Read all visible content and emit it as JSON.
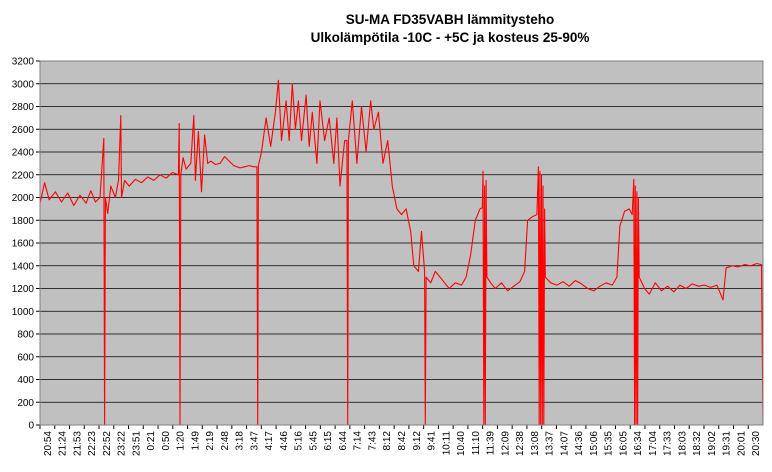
{
  "chart_data": {
    "type": "line",
    "title": "SU-MA FD35VABH lämmitysteho",
    "subtitle": "Ulkolämpötila  -10C - +5C ja kosteus 25-90%",
    "xlabel": "",
    "ylabel": "",
    "ylim": [
      0,
      3200
    ],
    "ytick_step": 200,
    "grid": true,
    "legend": "none",
    "colors": {
      "plot_bg": "#c0c0c0",
      "line": "#ff0000",
      "grid": "#000000"
    },
    "x_ticks": [
      "20:54",
      "21:24",
      "21:53",
      "22:23",
      "22:52",
      "23:22",
      "23:51",
      "0:21",
      "0:50",
      "1:20",
      "1:49",
      "2:19",
      "2:48",
      "3:18",
      "3:47",
      "4:17",
      "4:46",
      "5:16",
      "5:45",
      "6:15",
      "6:44",
      "7:14",
      "7:43",
      "8:12",
      "8:42",
      "9:12",
      "9:41",
      "10:11",
      "10:40",
      "11:10",
      "11:39",
      "12:09",
      "12:38",
      "13:08",
      "13:37",
      "14:07",
      "14:36",
      "15:06",
      "15:35",
      "16:05",
      "16:34",
      "17:04",
      "17:33",
      "18:03",
      "18:32",
      "19:02",
      "19:31",
      "20:01",
      "20:30"
    ],
    "series": [
      {
        "color": "#ff0000",
        "points": [
          [
            0,
            1950
          ],
          [
            0.3,
            2130
          ],
          [
            0.6,
            1980
          ],
          [
            1,
            2050
          ],
          [
            1.4,
            1960
          ],
          [
            1.8,
            2040
          ],
          [
            2.2,
            1930
          ],
          [
            2.6,
            2020
          ],
          [
            3,
            1950
          ],
          [
            3.3,
            2060
          ],
          [
            3.6,
            1960
          ],
          [
            3.9,
            2000
          ],
          [
            4.15,
            2520
          ],
          [
            4.2,
            0
          ],
          [
            4.25,
            2000
          ],
          [
            4.4,
            1860
          ],
          [
            4.6,
            2100
          ],
          [
            4.9,
            2000
          ],
          [
            5.1,
            2150
          ],
          [
            5.25,
            2720
          ],
          [
            5.3,
            2000
          ],
          [
            5.5,
            2150
          ],
          [
            5.8,
            2100
          ],
          [
            6.2,
            2160
          ],
          [
            6.6,
            2130
          ],
          [
            7,
            2180
          ],
          [
            7.4,
            2150
          ],
          [
            7.8,
            2200
          ],
          [
            8.2,
            2170
          ],
          [
            8.6,
            2220
          ],
          [
            9,
            2200
          ],
          [
            9.05,
            2650
          ],
          [
            9.1,
            0
          ],
          [
            9.15,
            2200
          ],
          [
            9.3,
            2350
          ],
          [
            9.5,
            2250
          ],
          [
            9.8,
            2300
          ],
          [
            10,
            2720
          ],
          [
            10.1,
            2150
          ],
          [
            10.3,
            2580
          ],
          [
            10.5,
            2050
          ],
          [
            10.7,
            2550
          ],
          [
            10.9,
            2300
          ],
          [
            11.1,
            2320
          ],
          [
            11.4,
            2290
          ],
          [
            11.7,
            2300
          ],
          [
            12,
            2360
          ],
          [
            12.3,
            2320
          ],
          [
            12.6,
            2280
          ],
          [
            13,
            2260
          ],
          [
            13.3,
            2270
          ],
          [
            13.6,
            2280
          ],
          [
            13.9,
            2270
          ],
          [
            14.1,
            2270
          ],
          [
            14.15,
            0
          ],
          [
            14.2,
            2280
          ],
          [
            14.4,
            2400
          ],
          [
            14.7,
            2700
          ],
          [
            15,
            2450
          ],
          [
            15.3,
            2750
          ],
          [
            15.5,
            3030
          ],
          [
            15.7,
            2500
          ],
          [
            16,
            2850
          ],
          [
            16.2,
            2500
          ],
          [
            16.4,
            3000
          ],
          [
            16.6,
            2600
          ],
          [
            16.8,
            2850
          ],
          [
            17,
            2500
          ],
          [
            17.3,
            2900
          ],
          [
            17.5,
            2450
          ],
          [
            17.7,
            2750
          ],
          [
            18,
            2300
          ],
          [
            18.2,
            2850
          ],
          [
            18.5,
            2500
          ],
          [
            18.8,
            2700
          ],
          [
            19.1,
            2300
          ],
          [
            19.3,
            2700
          ],
          [
            19.5,
            2100
          ],
          [
            19.8,
            2500
          ],
          [
            19.95,
            2500
          ],
          [
            20,
            0
          ],
          [
            20.05,
            2500
          ],
          [
            20.3,
            2850
          ],
          [
            20.6,
            2300
          ],
          [
            20.9,
            2800
          ],
          [
            21.2,
            2400
          ],
          [
            21.5,
            2850
          ],
          [
            21.7,
            2600
          ],
          [
            22,
            2750
          ],
          [
            22.3,
            2300
          ],
          [
            22.6,
            2500
          ],
          [
            22.9,
            2100
          ],
          [
            23.2,
            1900
          ],
          [
            23.5,
            1850
          ],
          [
            23.8,
            1900
          ],
          [
            24.1,
            1700
          ],
          [
            24.3,
            1400
          ],
          [
            24.6,
            1350
          ],
          [
            24.8,
            1700
          ],
          [
            25,
            1350
          ],
          [
            25.05,
            0
          ],
          [
            25.1,
            1300
          ],
          [
            25.4,
            1250
          ],
          [
            25.7,
            1350
          ],
          [
            26,
            1300
          ],
          [
            26.3,
            1250
          ],
          [
            26.6,
            1200
          ],
          [
            27,
            1250
          ],
          [
            27.4,
            1230
          ],
          [
            27.7,
            1300
          ],
          [
            28,
            1500
          ],
          [
            28.3,
            1800
          ],
          [
            28.6,
            1900
          ],
          [
            28.75,
            1910
          ],
          [
            28.8,
            2230
          ],
          [
            28.85,
            0
          ],
          [
            28.9,
            2100
          ],
          [
            28.95,
            0
          ],
          [
            29,
            2150
          ],
          [
            29.05,
            1300
          ],
          [
            29.3,
            1250
          ],
          [
            29.6,
            1200
          ],
          [
            30,
            1250
          ],
          [
            30.4,
            1180
          ],
          [
            30.8,
            1220
          ],
          [
            31.2,
            1260
          ],
          [
            31.5,
            1350
          ],
          [
            31.7,
            1800
          ],
          [
            32,
            1830
          ],
          [
            32.3,
            1850
          ],
          [
            32.4,
            2270
          ],
          [
            32.45,
            0
          ],
          [
            32.5,
            2230
          ],
          [
            32.55,
            0
          ],
          [
            32.6,
            2200
          ],
          [
            32.65,
            0
          ],
          [
            32.7,
            2100
          ],
          [
            32.75,
            0
          ],
          [
            32.8,
            1900
          ],
          [
            32.85,
            1300
          ],
          [
            33.2,
            1250
          ],
          [
            33.6,
            1230
          ],
          [
            34,
            1260
          ],
          [
            34.4,
            1220
          ],
          [
            34.8,
            1270
          ],
          [
            35.2,
            1240
          ],
          [
            35.6,
            1200
          ],
          [
            36,
            1180
          ],
          [
            36.4,
            1220
          ],
          [
            36.8,
            1250
          ],
          [
            37.2,
            1230
          ],
          [
            37.5,
            1300
          ],
          [
            37.7,
            1750
          ],
          [
            38,
            1880
          ],
          [
            38.3,
            1900
          ],
          [
            38.5,
            1850
          ],
          [
            38.6,
            2160
          ],
          [
            38.65,
            0
          ],
          [
            38.7,
            2100
          ],
          [
            38.75,
            0
          ],
          [
            38.8,
            2050
          ],
          [
            38.85,
            0
          ],
          [
            38.9,
            2000
          ],
          [
            38.95,
            1300
          ],
          [
            39.3,
            1200
          ],
          [
            39.6,
            1150
          ],
          [
            40,
            1250
          ],
          [
            40.4,
            1180
          ],
          [
            40.8,
            1220
          ],
          [
            41.2,
            1170
          ],
          [
            41.6,
            1230
          ],
          [
            42,
            1200
          ],
          [
            42.4,
            1240
          ],
          [
            42.8,
            1220
          ],
          [
            43.2,
            1230
          ],
          [
            43.6,
            1210
          ],
          [
            44,
            1230
          ],
          [
            44.4,
            1100
          ],
          [
            44.6,
            1380
          ],
          [
            45,
            1400
          ],
          [
            45.4,
            1390
          ],
          [
            45.8,
            1410
          ],
          [
            46.2,
            1400
          ],
          [
            46.6,
            1420
          ],
          [
            46.9,
            1410
          ],
          [
            47,
            0
          ]
        ]
      }
    ]
  }
}
